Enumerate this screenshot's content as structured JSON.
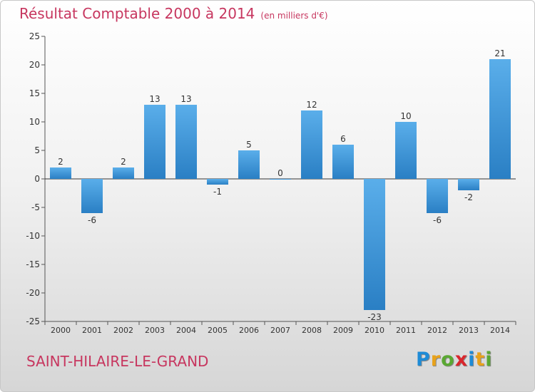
{
  "header": {
    "title": "Résultat Comptable 2000 à 2014",
    "unit": "(en milliers d'€)"
  },
  "footer": {
    "place": "SAINT-HILAIRE-LE-GRAND",
    "brand": "Proxiti",
    "brand_colors": [
      "#1e8bd6",
      "#e8a21a",
      "#5aa832",
      "#d9262c",
      "#1e8bd6",
      "#e8a21a",
      "#5aa832"
    ]
  },
  "colors": {
    "title": "#c7365f",
    "bar_light": "#5aaeea",
    "bar_dark": "#2a7fc4"
  },
  "chart_data": {
    "type": "bar",
    "title": "Résultat Comptable 2000 à 2014",
    "categories": [
      "2000",
      "2001",
      "2002",
      "2003",
      "2004",
      "2005",
      "2006",
      "2007",
      "2008",
      "2009",
      "2010",
      "2011",
      "2012",
      "2013",
      "2014"
    ],
    "values": [
      2,
      -6,
      2,
      13,
      13,
      -1,
      5,
      0,
      12,
      6,
      -23,
      10,
      -6,
      -2,
      21
    ],
    "ylim": [
      -25,
      25
    ],
    "yticks": [
      -25,
      -20,
      -15,
      -10,
      -5,
      0,
      5,
      10,
      15,
      20,
      25
    ],
    "grid": false,
    "legend": "none"
  }
}
